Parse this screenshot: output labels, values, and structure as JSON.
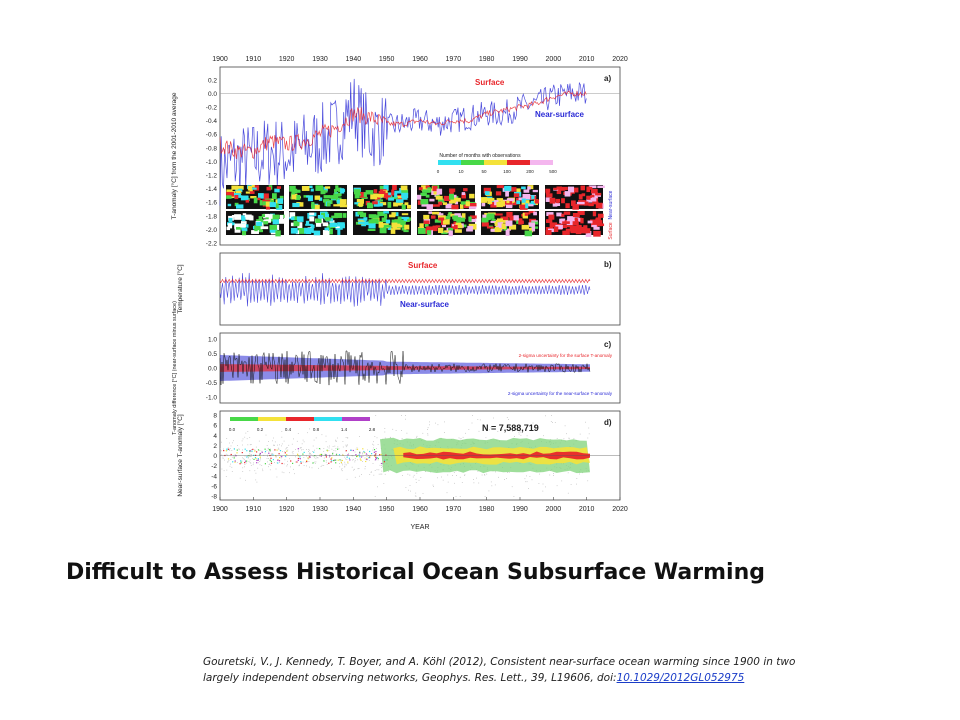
{
  "slide": {
    "title": "Difficult to Assess Historical Ocean Subsurface Warming",
    "citation_text": "Gouretski, V., J. Kennedy, T. Boyer, and A. Köhl (2012), Consistent near-surface ocean warming since 1900 in two largely independent observing networks, Geophys. Res. Lett., 39, L19606, doi:",
    "citation_doi": "10.1029/2012GL052975"
  },
  "colors": {
    "surface": "#e8262b",
    "near_surface": "#2b2bd6",
    "uncertainty_surface": "#e8262b",
    "uncertainty_near_surface": "#2b2bd6",
    "raw_black": "#111111",
    "scatter_gray": "#bdbdbd",
    "density_green": "#7fd37a",
    "density_yellow": "#f4e23a",
    "density_red": "#e8262b"
  },
  "chart_data": {
    "type": "line",
    "x_axis": {
      "label": "YEAR",
      "ticks": [
        "1900",
        "1910",
        "1920",
        "1930",
        "1940",
        "1950",
        "1960",
        "1970",
        "1980",
        "1990",
        "2000",
        "2010",
        "2020"
      ],
      "range": [
        1900,
        2020
      ]
    },
    "panels": [
      {
        "id": "a)",
        "ylabel": "T-anomaly [°C] from the 2001-2010 average",
        "ylim": [
          -2.2,
          0.3
        ],
        "yticks": [
          "0.2",
          "0.0",
          "-0.2",
          "-0.4",
          "-0.6",
          "-0.8",
          "-1.0",
          "-1.2",
          "-1.4",
          "-1.6",
          "-1.8",
          "-2.0",
          "-2.2"
        ],
        "series": [
          {
            "name": "Surface",
            "x": [
              1900,
              1905,
              1910,
              1915,
              1920,
              1925,
              1930,
              1935,
              1940,
              1945,
              1950,
              1955,
              1960,
              1965,
              1970,
              1975,
              1980,
              1985,
              1990,
              1995,
              2000,
              2005,
              2010
            ],
            "y": [
              -0.75,
              -0.85,
              -0.85,
              -0.7,
              -0.75,
              -0.7,
              -0.6,
              -0.5,
              -0.3,
              -0.35,
              -0.45,
              -0.45,
              -0.4,
              -0.45,
              -0.4,
              -0.4,
              -0.3,
              -0.25,
              -0.2,
              -0.15,
              -0.05,
              0.0,
              0.0
            ]
          },
          {
            "name": "Near-surface",
            "x": [
              1900,
              1905,
              1910,
              1915,
              1920,
              1925,
              1930,
              1935,
              1940,
              1945,
              1950,
              1955,
              1960,
              1965,
              1970,
              1975,
              1980,
              1985,
              1990,
              1995,
              2000,
              2005,
              2010
            ],
            "y": [
              -1.1,
              -1.0,
              -0.95,
              -0.85,
              -0.9,
              -0.8,
              -0.7,
              -0.55,
              -0.2,
              -0.6,
              -0.5,
              -0.45,
              -0.4,
              -0.45,
              -0.4,
              -0.35,
              -0.3,
              -0.3,
              -0.2,
              -0.15,
              -0.05,
              0.0,
              0.0
            ]
          }
        ],
        "map_legend_title": "Number of months with observations",
        "map_legend_ticks": [
          "0",
          "10",
          "50",
          "100",
          "200",
          "500"
        ],
        "map_legend_colors": [
          "#31e0f0",
          "#48d848",
          "#f4e23a",
          "#e8262b",
          "#f4b6ee"
        ],
        "map_row_labels": [
          "Surface",
          "Near-surface"
        ]
      },
      {
        "id": "b)",
        "ylabel": "Temperature [°C]",
        "series_labels": [
          "Surface",
          "Near-surface"
        ]
      },
      {
        "id": "c)",
        "ylabel": "T-anomaly difference [°C] (near-surface minus surface)",
        "ylim": [
          -1.0,
          1.0
        ],
        "yticks": [
          "1.0",
          "0.5",
          "0.0",
          "-0.5",
          "-1.0"
        ],
        "annotations": [
          "2-sigma uncertainty for the surface T-anomaly",
          "2-sigma uncertainty for the near-surface T-anomaly"
        ]
      },
      {
        "id": "d)",
        "ylabel": "Near-surface T-anomaly [°C]",
        "ylim": [
          -8,
          8
        ],
        "yticks": [
          "8",
          "6",
          "4",
          "2",
          "0",
          "-2",
          "-4",
          "-6",
          "-8"
        ],
        "annotation": "N = 7,588,719",
        "colorbar_ticks": [
          "0.0",
          "0.2",
          "0.4",
          "0.8",
          "1.4",
          "2.8"
        ],
        "colorbar_colors": [
          "#48d848",
          "#f4e23a",
          "#e8262b",
          "#31e0f0",
          "#b040c8"
        ]
      }
    ]
  }
}
